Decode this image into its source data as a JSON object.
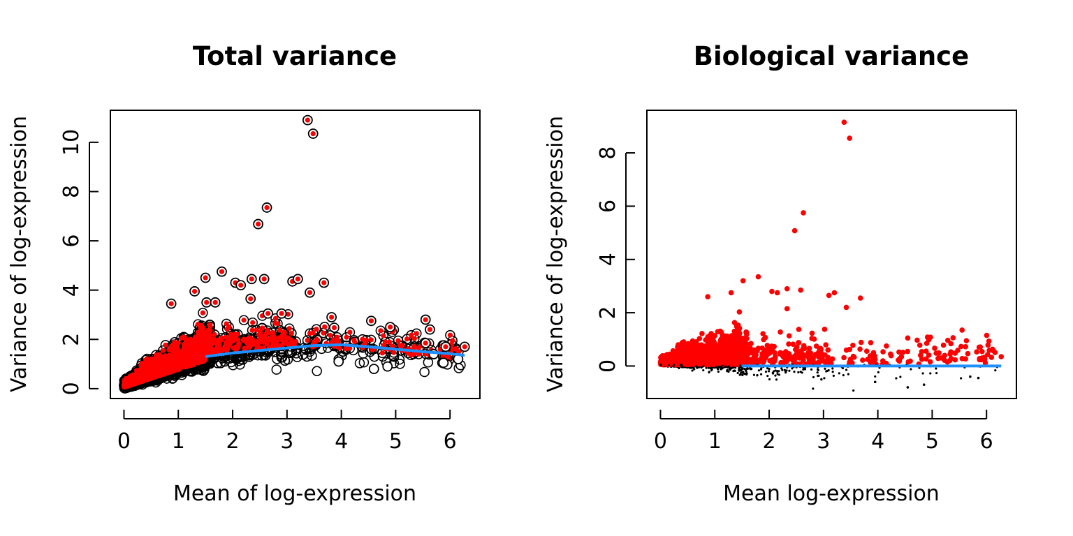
{
  "colors": {
    "highlight": "#ff0000",
    "points": "#000000",
    "trend": "#1e90ff"
  },
  "chart_data": [
    {
      "type": "scatter",
      "title": "Total variance",
      "xlabel": "Mean of log-expression",
      "ylabel": "Variance of log-expression",
      "xlim": [
        0,
        6.3
      ],
      "ylim": [
        0,
        11
      ],
      "xticks": [
        0,
        1,
        2,
        3,
        4,
        5,
        6
      ],
      "yticks": [
        0,
        2,
        4,
        6,
        8,
        10
      ],
      "marker": "open-circle",
      "highlight_marker": "red-dot-inside-circle",
      "notable_points": [
        {
          "x": 3.38,
          "y": 10.9,
          "highlighted": true
        },
        {
          "x": 3.48,
          "y": 10.35,
          "highlighted": true
        },
        {
          "x": 2.63,
          "y": 7.35,
          "highlighted": true
        },
        {
          "x": 2.47,
          "y": 6.68,
          "highlighted": true
        },
        {
          "x": 1.8,
          "y": 4.75,
          "highlighted": true
        },
        {
          "x": 1.5,
          "y": 4.5,
          "highlighted": true
        },
        {
          "x": 2.35,
          "y": 4.45,
          "highlighted": true
        },
        {
          "x": 2.58,
          "y": 4.45,
          "highlighted": true
        },
        {
          "x": 3.1,
          "y": 4.35,
          "highlighted": true
        },
        {
          "x": 3.2,
          "y": 4.45,
          "highlighted": true
        },
        {
          "x": 3.68,
          "y": 4.3,
          "highlighted": true
        },
        {
          "x": 2.05,
          "y": 4.3,
          "highlighted": true
        },
        {
          "x": 2.15,
          "y": 4.2,
          "highlighted": true
        },
        {
          "x": 3.42,
          "y": 3.9,
          "highlighted": true
        },
        {
          "x": 1.3,
          "y": 3.95,
          "highlighted": true
        },
        {
          "x": 0.87,
          "y": 3.45,
          "highlighted": true
        },
        {
          "x": 1.52,
          "y": 3.5,
          "highlighted": true
        },
        {
          "x": 1.68,
          "y": 3.5,
          "highlighted": true
        },
        {
          "x": 2.33,
          "y": 3.65,
          "highlighted": true
        },
        {
          "x": 2.9,
          "y": 3.05,
          "highlighted": true
        },
        {
          "x": 2.65,
          "y": 3.05,
          "highlighted": true
        },
        {
          "x": 3.82,
          "y": 2.9,
          "highlighted": true
        },
        {
          "x": 5.55,
          "y": 2.8,
          "highlighted": true
        },
        {
          "x": 4.55,
          "y": 2.75,
          "highlighted": true
        },
        {
          "x": 5.63,
          "y": 2.4,
          "highlighted": true
        },
        {
          "x": 4.9,
          "y": 2.5,
          "highlighted": true
        },
        {
          "x": 5.55,
          "y": 1.85,
          "highlighted": true
        },
        {
          "x": 5.92,
          "y": 1.7,
          "highlighted": true
        },
        {
          "x": 6.27,
          "y": 1.7,
          "highlighted": true
        },
        {
          "x": 5.95,
          "y": 0.98,
          "highlighted": false
        },
        {
          "x": 5.88,
          "y": 1.05,
          "highlighted": false
        },
        {
          "x": 6.15,
          "y": 1.2,
          "highlighted": false
        },
        {
          "x": 5.7,
          "y": 1.4,
          "highlighted": false
        },
        {
          "x": 4.85,
          "y": 0.9,
          "highlighted": false
        },
        {
          "x": 4.6,
          "y": 0.8,
          "highlighted": false
        },
        {
          "x": 3.95,
          "y": 1.1,
          "highlighted": false
        }
      ],
      "trend": {
        "x": [
          1.5,
          2.0,
          2.5,
          3.0,
          3.5,
          4.0,
          4.5,
          5.0,
          5.5,
          6.0,
          6.27
        ],
        "y": [
          1.3,
          1.45,
          1.55,
          1.65,
          1.75,
          1.78,
          1.7,
          1.6,
          1.5,
          1.42,
          1.35
        ]
      }
    },
    {
      "type": "scatter",
      "title": "Biological variance",
      "xlabel": "Mean log-expression",
      "ylabel": "Variance of log-expression",
      "xlim": [
        0,
        6.3
      ],
      "ylim": [
        -1.2,
        9.2
      ],
      "xticks": [
        0,
        1,
        2,
        3,
        4,
        5,
        6
      ],
      "yticks": [
        0,
        2,
        4,
        6,
        8
      ],
      "marker": "filled-dot",
      "notable_points": [
        {
          "x": 3.38,
          "y": 9.15,
          "highlighted": true
        },
        {
          "x": 3.48,
          "y": 8.55,
          "highlighted": true
        },
        {
          "x": 2.63,
          "y": 5.75,
          "highlighted": true
        },
        {
          "x": 2.47,
          "y": 5.08,
          "highlighted": true
        },
        {
          "x": 1.8,
          "y": 3.35,
          "highlighted": true
        },
        {
          "x": 1.52,
          "y": 3.2,
          "highlighted": true
        },
        {
          "x": 2.33,
          "y": 2.9,
          "highlighted": true
        },
        {
          "x": 2.58,
          "y": 2.85,
          "highlighted": true
        },
        {
          "x": 2.05,
          "y": 2.8,
          "highlighted": true
        },
        {
          "x": 2.15,
          "y": 2.75,
          "highlighted": true
        },
        {
          "x": 3.2,
          "y": 2.75,
          "highlighted": true
        },
        {
          "x": 3.1,
          "y": 2.65,
          "highlighted": true
        },
        {
          "x": 3.68,
          "y": 2.55,
          "highlighted": true
        },
        {
          "x": 0.87,
          "y": 2.6,
          "highlighted": true
        },
        {
          "x": 1.3,
          "y": 2.75,
          "highlighted": true
        },
        {
          "x": 3.42,
          "y": 2.2,
          "highlighted": true
        },
        {
          "x": 2.33,
          "y": 2.15,
          "highlighted": true
        },
        {
          "x": 5.55,
          "y": 1.35,
          "highlighted": true
        },
        {
          "x": 4.55,
          "y": 1.05,
          "highlighted": true
        },
        {
          "x": 5.63,
          "y": 0.95,
          "highlighted": true
        },
        {
          "x": 4.9,
          "y": 0.85,
          "highlighted": true
        },
        {
          "x": 5.92,
          "y": 0.3,
          "highlighted": true
        },
        {
          "x": 6.27,
          "y": 0.35,
          "highlighted": true
        },
        {
          "x": 4.55,
          "y": -0.8,
          "highlighted": false
        },
        {
          "x": 3.95,
          "y": -0.6,
          "highlighted": false
        },
        {
          "x": 4.85,
          "y": -0.7,
          "highlighted": false
        },
        {
          "x": 5.85,
          "y": -0.45,
          "highlighted": false
        },
        {
          "x": 5.7,
          "y": -0.4,
          "highlighted": false
        }
      ],
      "trend": {
        "x": [
          1.5,
          2.0,
          3.0,
          4.0,
          5.0,
          6.27
        ],
        "y": [
          0,
          0,
          0,
          0,
          0,
          0
        ]
      }
    }
  ]
}
